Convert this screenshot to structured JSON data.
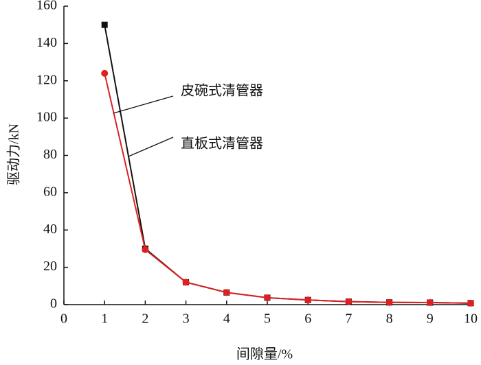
{
  "chart_data": {
    "type": "line",
    "xlabel": "间隙量/%",
    "ylabel": "驱动力/kN",
    "x": [
      1,
      2,
      3,
      4,
      5,
      6,
      7,
      8,
      9,
      10
    ],
    "series": [
      {
        "name": "直板式清管器",
        "color": "#111111",
        "marker": "square",
        "values": [
          150,
          30,
          12,
          6.5,
          3.7,
          2.5,
          1.6,
          1.2,
          1.1,
          0.8
        ]
      },
      {
        "name": "皮碗式清管器",
        "color": "#e02020",
        "marker": "circle",
        "values": [
          124,
          29.5,
          12,
          6.5,
          3.7,
          2.5,
          1.6,
          1.2,
          1.1,
          0.8
        ]
      }
    ],
    "xlim": [
      0,
      10
    ],
    "xticks": [
      0,
      1,
      2,
      3,
      4,
      5,
      6,
      7,
      8,
      9,
      10
    ],
    "ylim": [
      0,
      160
    ],
    "yticks": [
      0,
      20,
      40,
      60,
      80,
      100,
      120,
      140,
      160
    ]
  }
}
